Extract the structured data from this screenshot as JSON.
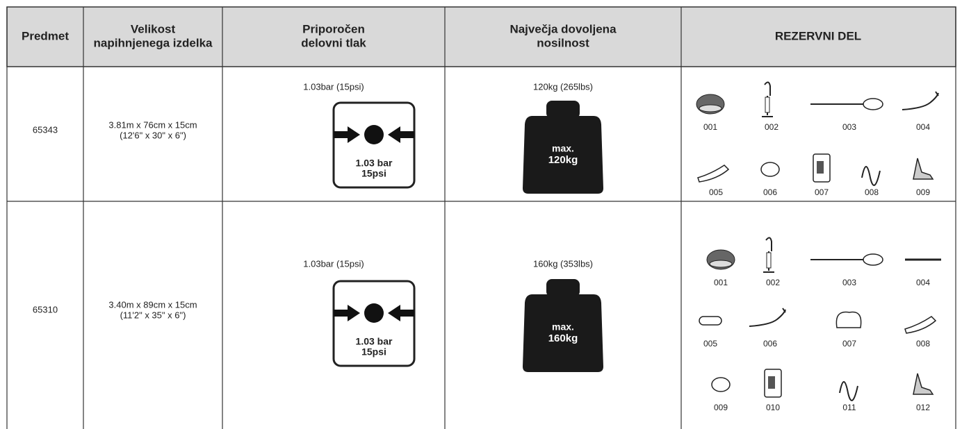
{
  "header": {
    "columns": [
      [
        "Predmet"
      ],
      [
        "Velikost",
        "napihnjenega izdelka"
      ],
      [
        "Priporočen",
        "delovni tlak"
      ],
      [
        "Največja dovoljena",
        "nosilnost"
      ],
      [
        "REZERVNI DEL"
      ]
    ]
  },
  "rows": [
    {
      "item": "65343",
      "size": [
        "3.81m x 76cm x 15cm",
        "(12'6\" x 30\" x 6\")"
      ],
      "pressure": "1.03bar (15psi)",
      "pressure_icon": [
        "1.03 bar",
        "15psi"
      ],
      "load": "120kg (265lbs)",
      "load_icon": [
        "max.",
        "120kg"
      ],
      "parts": [
        "001",
        "002",
        "003",
        "004",
        "005",
        "006",
        "007",
        "008",
        "009"
      ]
    },
    {
      "item": "65310",
      "size": [
        "3.40m x 89cm x 15cm",
        "(11'2\" x 35\" x 6\")"
      ],
      "pressure": "1.03bar (15psi)",
      "pressure_icon": [
        "1.03 bar",
        "15psi"
      ],
      "load": "160kg (353lbs)",
      "load_icon": [
        "max.",
        "160kg"
      ],
      "parts": [
        "001",
        "002",
        "003",
        "004",
        "005",
        "006",
        "007",
        "008",
        "009",
        "010",
        "011",
        "012"
      ]
    }
  ]
}
